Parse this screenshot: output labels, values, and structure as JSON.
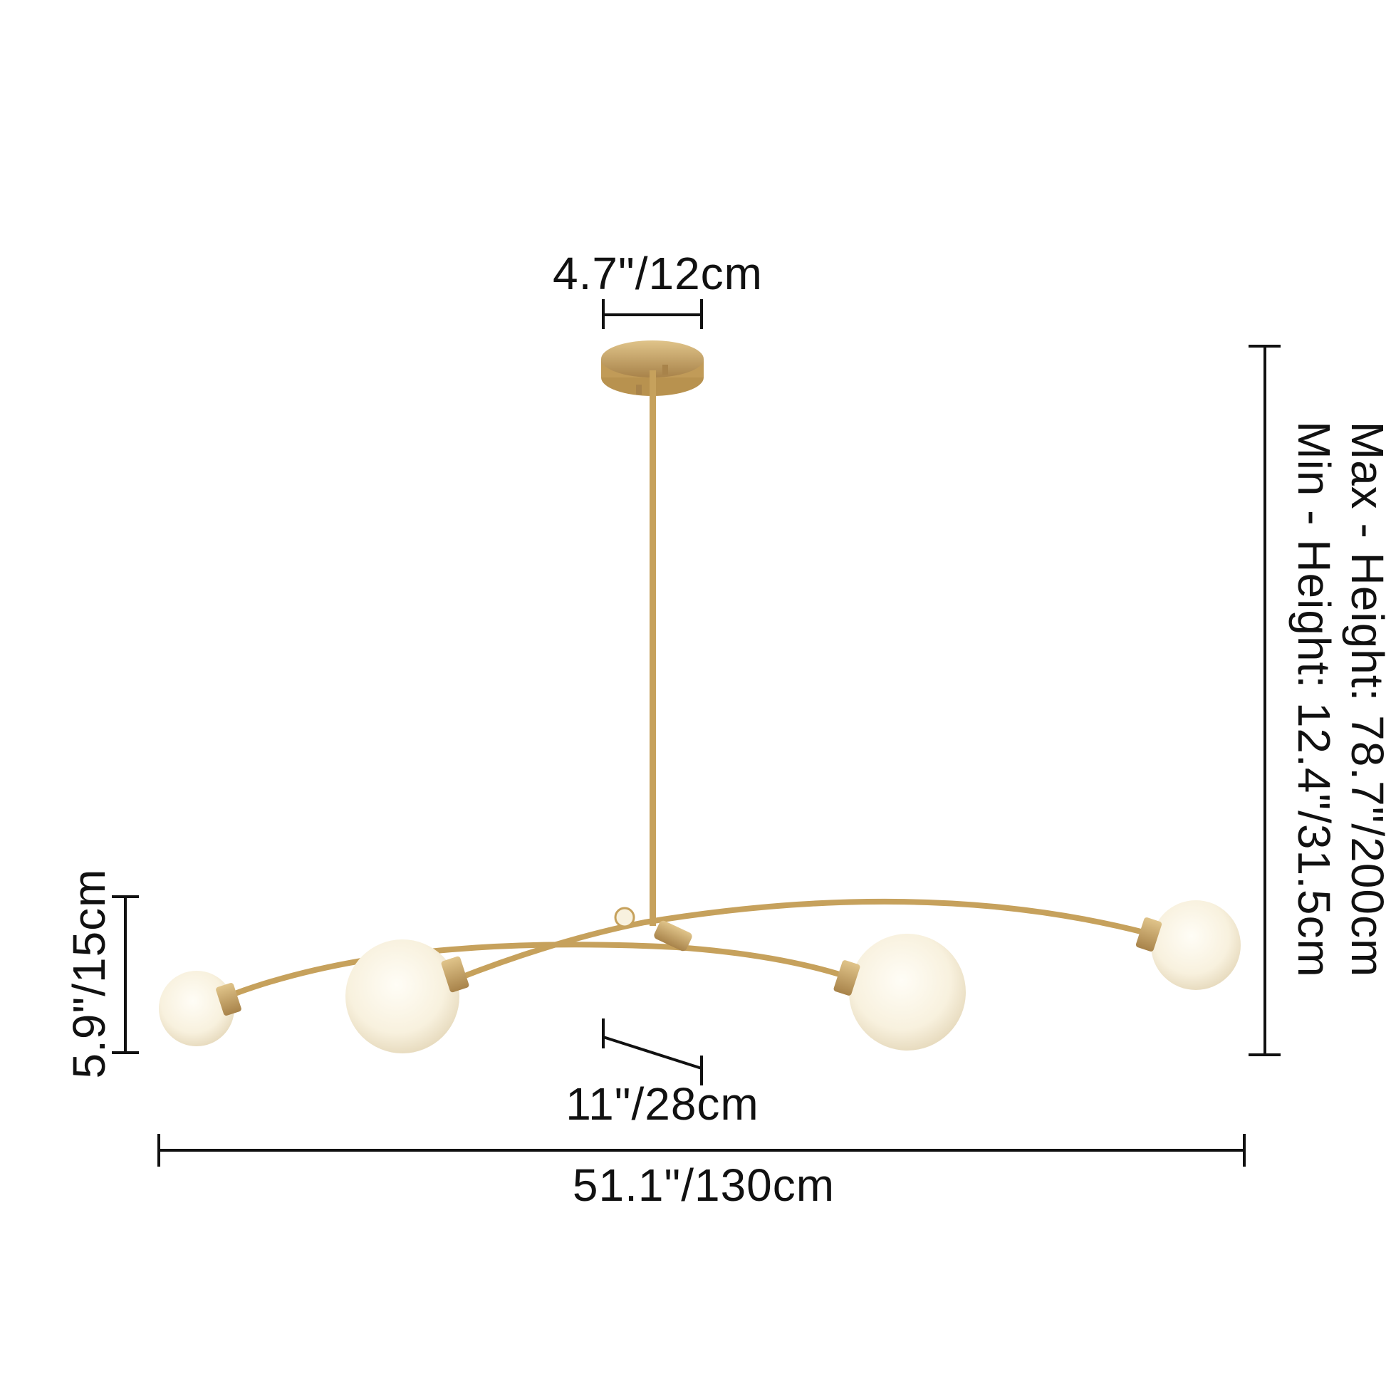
{
  "dimensions": {
    "canopy_width": "4.7\"/12cm",
    "max_height": "Max - Height: 78.7\"/200cm",
    "min_height": "Min - Height: 12.4\"/31.5cm",
    "globe_height": "5.9\"/15cm",
    "arm_length": "11\"/28cm",
    "total_width": "51.1\"/130cm"
  },
  "colors": {
    "brass": "#c9a45e",
    "glass": "#fbf6ea",
    "line": "#111111"
  }
}
